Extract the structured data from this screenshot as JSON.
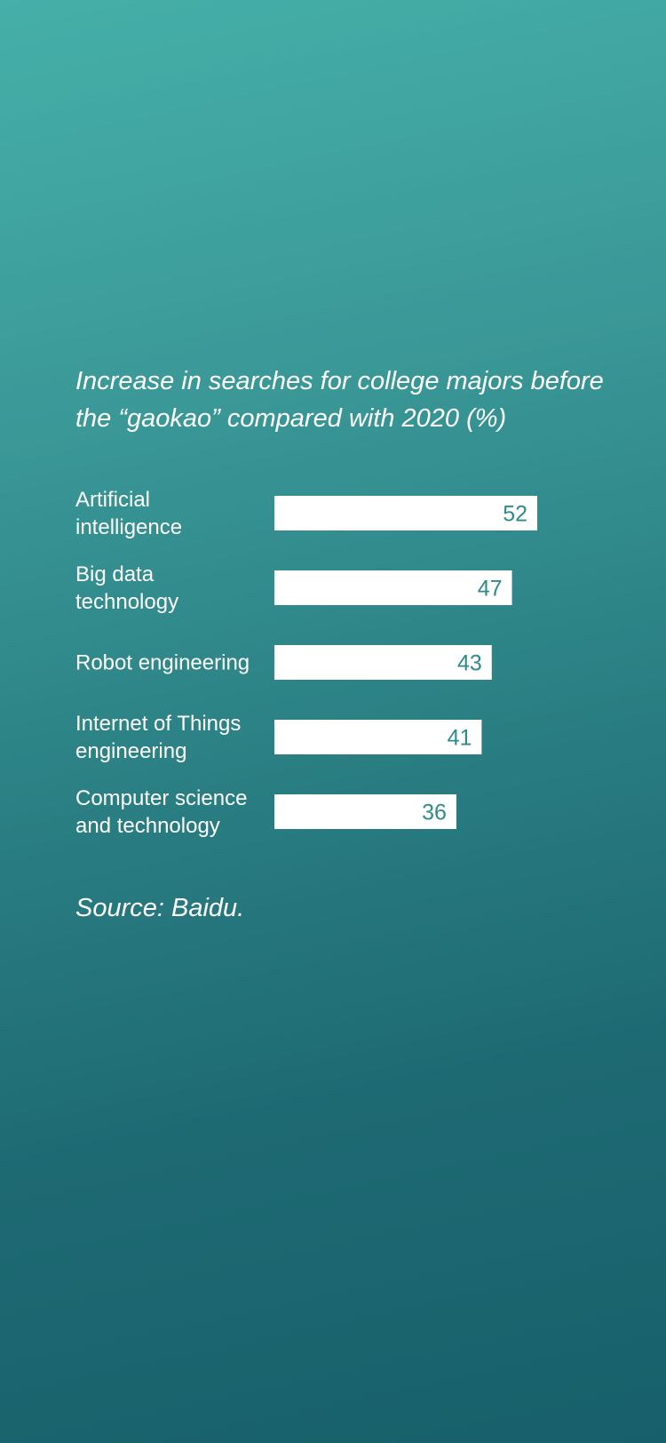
{
  "colors": {
    "bar_fill": "#ffffff",
    "value_text": "#2f8a8b",
    "label_text": "#ffffff",
    "background_top": "#46afa8",
    "background_bottom": "#17606b"
  },
  "chart_data": {
    "type": "bar",
    "orientation": "horizontal",
    "title_lines": [
      "Increase in searches for college majors before",
      "the “gaokao” compared with 2020 (%)"
    ],
    "categories": [
      [
        "Artificial",
        "intelligence"
      ],
      [
        "Big data",
        "technology"
      ],
      [
        "Robot engineering"
      ],
      [
        "Internet of Things",
        "engineering"
      ],
      [
        "Computer science",
        "and technology"
      ]
    ],
    "values": [
      52,
      47,
      43,
      41,
      36
    ],
    "xlim": [
      0,
      52
    ],
    "grid": false,
    "legend": "none",
    "data_labels": true,
    "source": "Source: Baidu."
  }
}
